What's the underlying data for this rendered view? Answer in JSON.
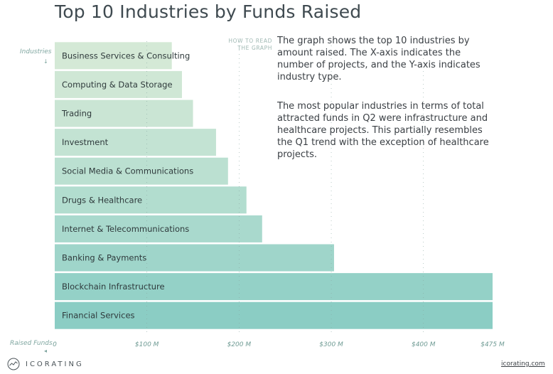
{
  "header": {
    "title": "Top 10 Industries by Funds Raised",
    "how_to_read": "HOW TO READ THE GRAPH"
  },
  "description": {
    "p1": "The graph shows the top 10 industries by amount raised. The X-axis indicates the number of projects, and the Y-axis indicates industry type.",
    "p2": "The most popular industries in terms of total attracted funds in Q2 were infrastructure and healthcare projects. This partially resembles the Q1 trend with the exception of healthcare projects."
  },
  "footer": {
    "brand": "ICORATING",
    "url": "icorating.com"
  },
  "chart_data": {
    "type": "bar",
    "orientation": "horizontal",
    "ylabel": "Industries",
    "xlabel": "Raised Funds",
    "xlim": [
      0,
      475
    ],
    "xticks": [
      {
        "value": 0,
        "label": "0"
      },
      {
        "value": 100,
        "label": "$100 M"
      },
      {
        "value": 200,
        "label": "$200 M"
      },
      {
        "value": 300,
        "label": "$300 M"
      },
      {
        "value": 400,
        "label": "$400 M"
      },
      {
        "value": 475,
        "label": "$475 M"
      }
    ],
    "grid": true,
    "categories": [
      "Business Services & Consulting",
      "Computing & Data Storage",
      "Trading",
      "Investment",
      "Social Media & Communications",
      "Drugs & Healthcare",
      "Internet & Telecommunications",
      "Banking & Payments",
      "Blockchain Infrastructure",
      "Financial Services"
    ],
    "values": [
      127,
      138,
      150,
      175,
      188,
      208,
      225,
      303,
      475,
      475
    ],
    "colors": [
      "#d4e9d6",
      "#cfe7d5",
      "#cae5d4",
      "#c3e3d3",
      "#bbe0d1",
      "#b2ddcf",
      "#a9d9cd",
      "#9fd5ca",
      "#94d1c7",
      "#8bcdc4"
    ]
  }
}
